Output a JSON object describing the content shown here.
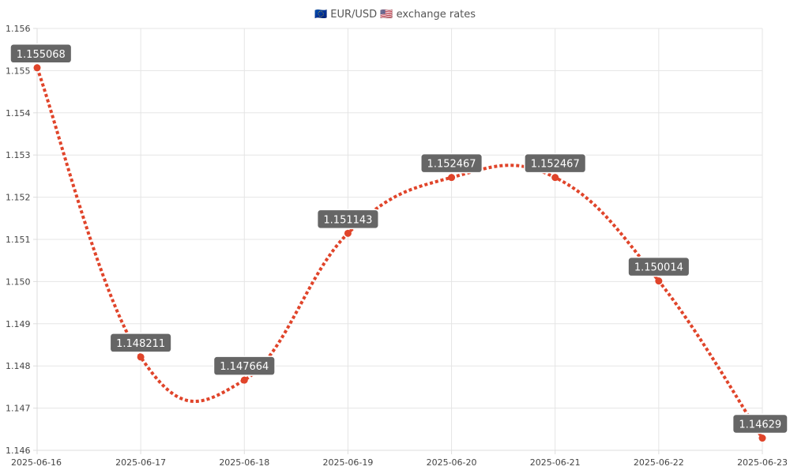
{
  "chart_data": {
    "type": "line",
    "title": "🇪🇺 EUR/USD 🇺🇸 exchange rates",
    "x": [
      "2025-06-16",
      "2025-06-17",
      "2025-06-18",
      "2025-06-19",
      "2025-06-20",
      "2025-06-21",
      "2025-06-22",
      "2025-06-23"
    ],
    "series": [
      {
        "values": [
          1.155068,
          1.148211,
          1.147664,
          1.151143,
          1.152467,
          1.152467,
          1.150014,
          1.14629
        ],
        "labels": [
          "1.155068",
          "1.148211",
          "1.147664",
          "1.151143",
          "1.152467",
          "1.152467",
          "1.150014",
          "1.14629"
        ],
        "color": "#e0442a",
        "line_style": "dotted",
        "curve": "smooth"
      }
    ],
    "ylim": [
      1.146,
      1.156
    ],
    "y_ticks": [
      "1.146",
      "1.147",
      "1.148",
      "1.149",
      "1.150",
      "1.151",
      "1.152",
      "1.153",
      "1.154",
      "1.155",
      "1.156"
    ],
    "xlabel": "",
    "ylabel": "",
    "grid": true,
    "legend": "none",
    "label_box_color": "#666666"
  }
}
